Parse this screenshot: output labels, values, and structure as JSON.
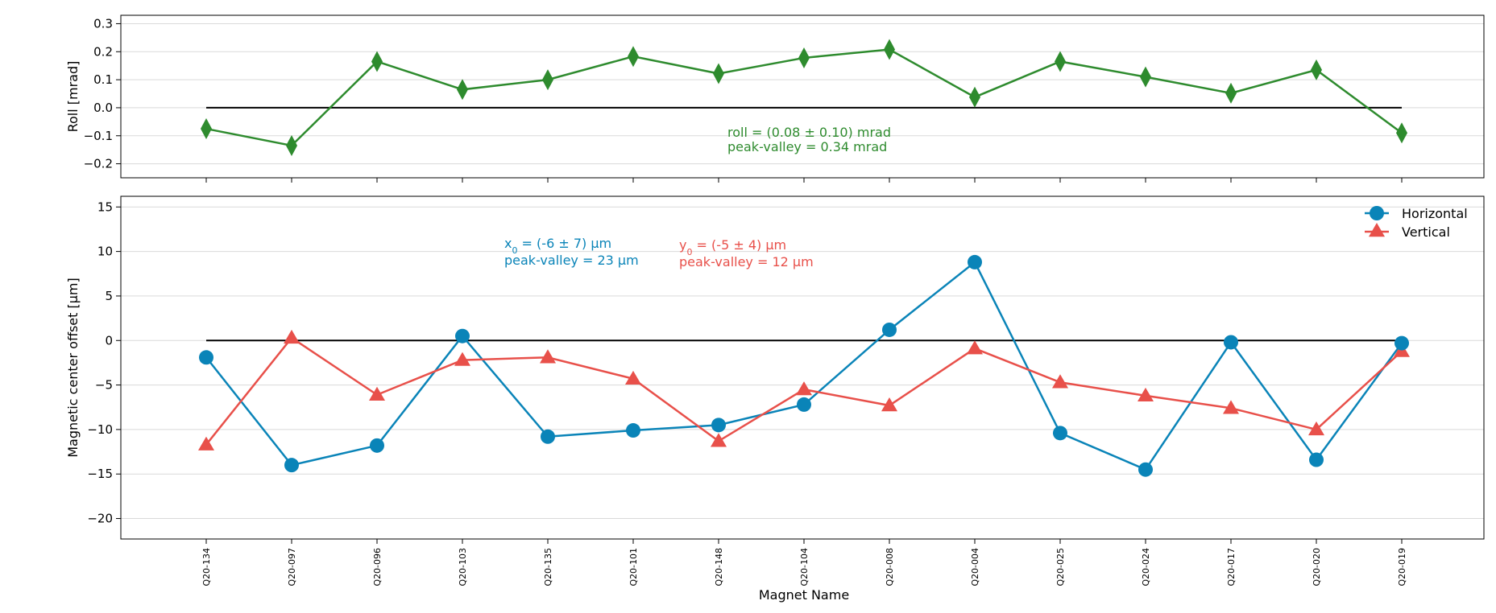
{
  "chart_data": [
    {
      "type": "line",
      "ylabel": "Roll [mrad]",
      "ylim": [
        -0.25,
        0.33
      ],
      "yticks": [
        -0.2,
        -0.1,
        0.0,
        0.1,
        0.2,
        0.3
      ],
      "ytick_labels": [
        "−0.2",
        "−0.1",
        "0.0",
        "0.1",
        "0.2",
        "0.3"
      ],
      "grid": true,
      "categories": [
        "Q20-134",
        "Q20-097",
        "Q20-096",
        "Q20-103",
        "Q20-135",
        "Q20-101",
        "Q20-148",
        "Q20-104",
        "Q20-008",
        "Q20-004",
        "Q20-025",
        "Q20-024",
        "Q20-017",
        "Q20-020",
        "Q20-019"
      ],
      "series": [
        {
          "marker": "diamond",
          "color": "#2e8b2e",
          "values": [
            -0.075,
            -0.135,
            0.165,
            0.065,
            0.1,
            0.183,
            0.122,
            0.178,
            0.208,
            0.038,
            0.165,
            0.11,
            0.052,
            0.135,
            -0.09
          ]
        }
      ],
      "reference_line": 0.0,
      "annotations": [
        {
          "text": "roll = (0.08 ± 0.10) mrad",
          "color": "#2e8b2e"
        },
        {
          "text": "peak-valley = 0.34 mrad",
          "color": "#2e8b2e"
        }
      ]
    },
    {
      "type": "line",
      "xlabel": "Magnet Name",
      "ylabel": "Magnetic center offset [μm]",
      "ylim": [
        -22.3,
        16.2
      ],
      "yticks": [
        -20,
        -15,
        -10,
        -5,
        0,
        5,
        10,
        15
      ],
      "ytick_labels": [
        "−20",
        "−15",
        "−10",
        "−5",
        "0",
        "5",
        "10",
        "15"
      ],
      "grid": true,
      "legend": "top-right",
      "categories": [
        "Q20-134",
        "Q20-097",
        "Q20-096",
        "Q20-103",
        "Q20-135",
        "Q20-101",
        "Q20-148",
        "Q20-104",
        "Q20-008",
        "Q20-004",
        "Q20-025",
        "Q20-024",
        "Q20-017",
        "Q20-020",
        "Q20-019"
      ],
      "series": [
        {
          "name": "Horizontal",
          "marker": "circle",
          "color": "#0a84b8",
          "values": [
            -1.9,
            -14.0,
            -11.8,
            0.5,
            -10.8,
            -10.1,
            -9.5,
            -7.2,
            1.2,
            8.8,
            -10.4,
            -14.5,
            -0.2,
            -13.4,
            -0.3
          ]
        },
        {
          "name": "Vertical",
          "marker": "triangle",
          "color": "#e8504a",
          "values": [
            -11.7,
            0.3,
            -6.1,
            -2.2,
            -1.9,
            -4.3,
            -11.3,
            -5.5,
            -7.3,
            -0.9,
            -4.7,
            -6.2,
            -7.6,
            -10.0,
            -1.2
          ]
        }
      ],
      "reference_line": 0,
      "annotations": [
        {
          "text_main": "x",
          "sub": "0",
          "text_rest": " = (-6 ±  7) μm",
          "line2": "peak-valley = 23 μm",
          "color": "#0a84b8"
        },
        {
          "text_main": "y",
          "sub": "0",
          "text_rest": " = (-5 ±  4) μm",
          "line2": "peak-valley = 12 μm",
          "color": "#e8504a"
        }
      ]
    }
  ]
}
